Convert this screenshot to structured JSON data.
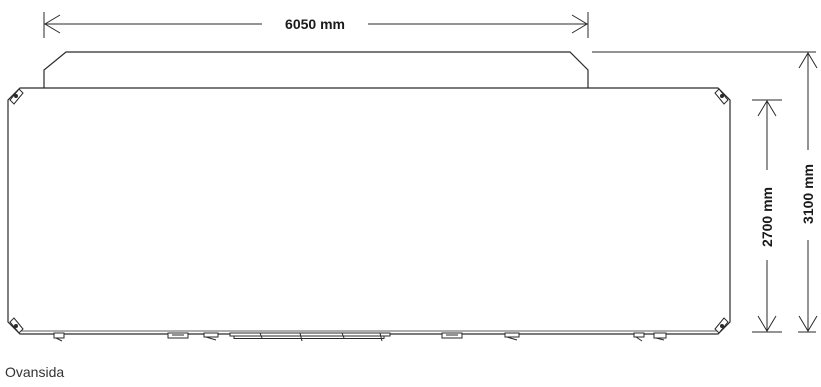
{
  "drawing": {
    "dimensions": {
      "width_label": "6050 mm",
      "height_inner_label": "2700 mm",
      "height_total_label": "3100 mm"
    },
    "caption": "Ovansida"
  },
  "colors": {
    "line": "#2a2a2a",
    "text": "#1a1a1a",
    "background": "#ffffff"
  }
}
